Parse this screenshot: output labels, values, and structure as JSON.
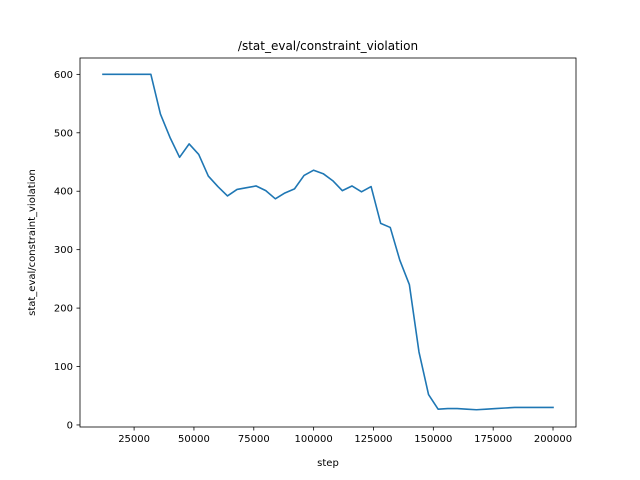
{
  "chart_data": {
    "type": "line",
    "title": "/stat_eval/constraint_violation",
    "xlabel": "step",
    "ylabel": "stat_eval/constraint_violation",
    "xlim": [
      2400,
      209600
    ],
    "ylim": [
      -3.5,
      628
    ],
    "x_ticks": [
      25000,
      50000,
      75000,
      100000,
      125000,
      150000,
      175000,
      200000
    ],
    "x_tick_labels": [
      "25000",
      "50000",
      "75000",
      "100000",
      "125000",
      "150000",
      "175000",
      "200000"
    ],
    "y_ticks": [
      0,
      100,
      200,
      300,
      400,
      500,
      600
    ],
    "y_tick_labels": [
      "0",
      "100",
      "200",
      "300",
      "400",
      "500",
      "600"
    ],
    "grid": false,
    "series": [
      {
        "color": "#1f77b4",
        "x": [
          12000,
          16000,
          20000,
          24000,
          28000,
          32000,
          36000,
          40000,
          44000,
          48000,
          52000,
          56000,
          60000,
          64000,
          68000,
          72000,
          76000,
          80000,
          84000,
          88000,
          92000,
          96000,
          100000,
          104000,
          108000,
          112000,
          116000,
          120000,
          124000,
          128000,
          132000,
          136000,
          140000,
          144000,
          148000,
          152000,
          156000,
          160000,
          164000,
          168000,
          172000,
          176000,
          180000,
          184000,
          188000,
          192000,
          196000,
          200000
        ],
        "y": [
          600,
          600,
          600,
          600,
          600,
          600,
          532,
          492,
          458,
          481,
          463,
          426,
          408,
          392,
          403,
          406,
          409,
          401,
          387,
          397,
          404,
          427,
          436,
          430,
          418,
          401,
          409,
          399,
          408,
          345,
          338,
          282,
          240,
          125,
          52,
          27,
          28,
          28,
          27,
          26,
          27,
          28,
          29,
          30,
          30,
          30,
          30,
          30
        ]
      }
    ]
  }
}
